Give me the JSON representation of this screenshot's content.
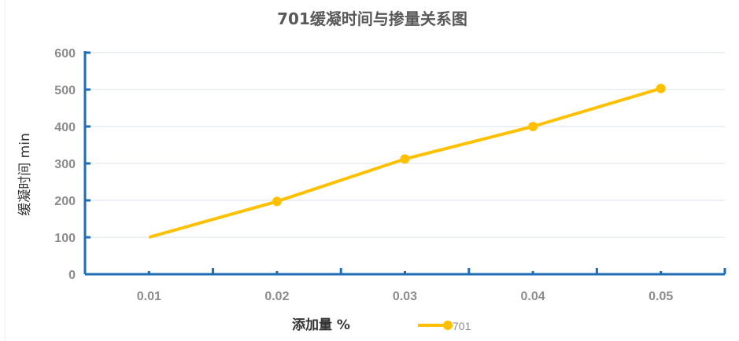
{
  "chart_data": {
    "type": "line",
    "title": "701缓凝时间与掺量关系图",
    "xlabel": "添加量 %",
    "ylabel": "缓凝时间 min",
    "categories": [
      "0.01",
      "0.02",
      "0.03",
      "0.04",
      "0.05"
    ],
    "series": [
      {
        "name": "701",
        "values": [
          100,
          197,
          312,
          400,
          503
        ],
        "markers": [
          false,
          true,
          true,
          true,
          true
        ]
      }
    ],
    "ylim": [
      0,
      600
    ],
    "yticks": [
      "0",
      "100",
      "200",
      "300",
      "400",
      "500",
      "600"
    ],
    "grid": "horizontal",
    "legend": "bottom",
    "colors": {
      "series": "#FFC000",
      "axis": "#1F6DB5",
      "grid": "#E6EBF2"
    }
  }
}
